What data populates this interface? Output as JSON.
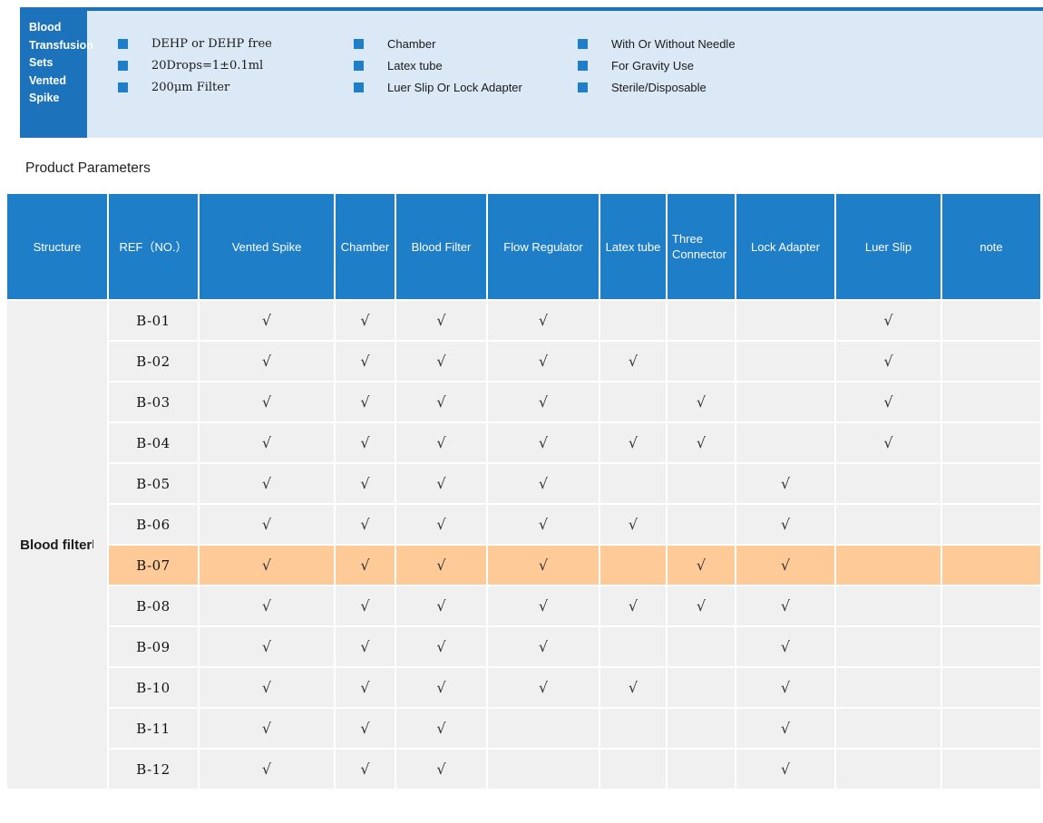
{
  "brand": {
    "title_lines": [
      "Blood",
      "Transfusion",
      "Sets",
      "Vented",
      "Spike"
    ]
  },
  "features": {
    "col1": [
      "DEHP or DEHP free",
      "20Drops=1±0.1ml",
      "200μm Filter"
    ],
    "col2": [
      "Chamber",
      "Latex tube",
      "Luer Slip Or Lock Adapter"
    ],
    "col3": [
      "With Or Without Needle",
      "For Gravity Use",
      "Sterile/Disposable"
    ]
  },
  "section_title": "Product Parameters",
  "table": {
    "columns": [
      "Structure",
      "REF（NO.）",
      "Vented Spike",
      "Chamber",
      "Blood Filter",
      "Flow Regulator",
      "Latex tube",
      "Three Connector",
      "Lock Adapter",
      "Luer Slip",
      "note"
    ],
    "structure_label": "Blood filter",
    "structure_mark": "|",
    "check_glyph": "√",
    "rows": [
      {
        "ref": "B-01",
        "checks": [
          1,
          1,
          1,
          1,
          0,
          0,
          0,
          1,
          0
        ],
        "highlight": false
      },
      {
        "ref": "B-02",
        "checks": [
          1,
          1,
          1,
          1,
          1,
          0,
          0,
          1,
          0
        ],
        "highlight": false
      },
      {
        "ref": "B-03",
        "checks": [
          1,
          1,
          1,
          1,
          0,
          1,
          0,
          1,
          0
        ],
        "highlight": false
      },
      {
        "ref": "B-04",
        "checks": [
          1,
          1,
          1,
          1,
          1,
          1,
          0,
          1,
          0
        ],
        "highlight": false
      },
      {
        "ref": "B-05",
        "checks": [
          1,
          1,
          1,
          1,
          0,
          0,
          1,
          0,
          0
        ],
        "highlight": false
      },
      {
        "ref": "B-06",
        "checks": [
          1,
          1,
          1,
          1,
          1,
          0,
          1,
          0,
          0
        ],
        "highlight": false
      },
      {
        "ref": "B-07",
        "checks": [
          1,
          1,
          1,
          1,
          0,
          1,
          1,
          0,
          0
        ],
        "highlight": true
      },
      {
        "ref": "B-08",
        "checks": [
          1,
          1,
          1,
          1,
          1,
          1,
          1,
          0,
          0
        ],
        "highlight": false
      },
      {
        "ref": "B-09",
        "checks": [
          1,
          1,
          1,
          1,
          0,
          0,
          1,
          0,
          0
        ],
        "highlight": false
      },
      {
        "ref": "B-10",
        "checks": [
          1,
          1,
          1,
          1,
          1,
          0,
          1,
          0,
          0
        ],
        "highlight": false
      },
      {
        "ref": "B-11",
        "checks": [
          1,
          1,
          1,
          0,
          0,
          0,
          1,
          0,
          0
        ],
        "highlight": false
      },
      {
        "ref": "B-12",
        "checks": [
          1,
          1,
          1,
          0,
          0,
          0,
          1,
          0,
          0
        ],
        "highlight": false
      }
    ]
  },
  "colors": {
    "blue_dark": "#1C73BC",
    "blue_mid": "#1E7EC8",
    "band_bg": "#DBE8F5",
    "row_bg": "#F0F0F0",
    "highlight": "#FECB98"
  }
}
